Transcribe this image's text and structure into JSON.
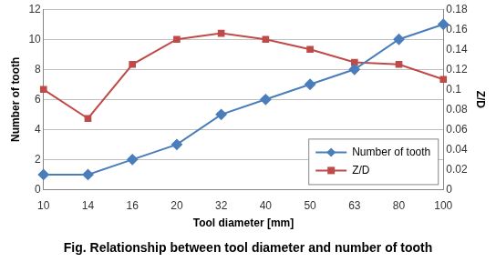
{
  "chart_data": {
    "type": "line",
    "title": "Fig. Relationship between tool diameter and number of tooth",
    "x_label": "Tool diameter [mm]",
    "y_label": "Number of tooth",
    "y2_label": "Z/D",
    "categories": [
      "10",
      "14",
      "16",
      "20",
      "32",
      "40",
      "50",
      "63",
      "80",
      "100"
    ],
    "series": [
      {
        "name": "Number of tooth",
        "color": "#4a7ebb",
        "marker": "diamond",
        "line_style": "solid",
        "values": [
          1,
          1,
          2,
          3,
          5,
          6,
          7,
          8,
          10,
          11
        ]
      },
      {
        "name": "Z/D",
        "color": "#be4b48",
        "marker": "square",
        "line_style": "solid",
        "axis": "y2",
        "values": [
          0.1,
          0.071,
          0.125,
          0.15,
          0.156,
          0.15,
          0.14,
          0.127,
          0.125,
          0.11
        ]
      }
    ],
    "ylim": [
      0,
      12
    ],
    "yticks": [
      0,
      2,
      4,
      6,
      8,
      10,
      12
    ],
    "y2lim": [
      0,
      0.18
    ],
    "y2ticks": [
      0,
      0.02,
      0.04,
      0.06,
      0.08,
      0.1,
      0.12,
      0.14,
      0.16,
      0.18
    ],
    "grid": true,
    "legend": "lower right"
  }
}
